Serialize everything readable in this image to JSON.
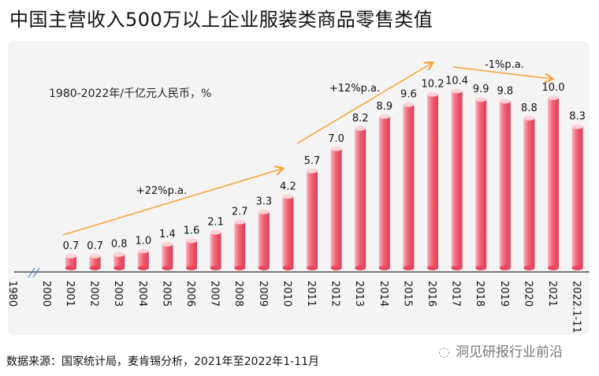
{
  "title": "中国主营收入500万以上企业服装类商品零售类值",
  "subtitle": "1980-2022年/千亿元人民币，%",
  "source": "数据来源：国家统计局，麦肯锡分析，2021年至2022年1-11月",
  "watermark": "洞见研报行业前沿",
  "colors": {
    "bar": "#e8475f",
    "bar_light": "#f8a3b0",
    "arrow": "#f5a43a",
    "axis": "#333333"
  },
  "chart_data": {
    "type": "bar",
    "title": "中国主营收入500万以上企业服装类商品零售类值",
    "ylabel": "千亿元人民币",
    "ylim": [
      0,
      11
    ],
    "grid": false,
    "categories": [
      "1980",
      "2000",
      "2001",
      "2002",
      "2003",
      "2004",
      "2005",
      "2006",
      "2007",
      "2008",
      "2009",
      "2010",
      "2011",
      "2012",
      "2013",
      "2014",
      "2015",
      "2016",
      "2017",
      "2018",
      "2019",
      "2020",
      "2021",
      "2022.1-11"
    ],
    "values": [
      null,
      null,
      0.7,
      0.7,
      0.8,
      1.0,
      1.4,
      1.6,
      2.1,
      2.7,
      3.3,
      4.2,
      5.7,
      7.0,
      8.2,
      8.9,
      9.6,
      10.2,
      10.4,
      9.9,
      9.8,
      8.8,
      10.0,
      8.3
    ],
    "value_labels": [
      "",
      "",
      "0.7",
      "0.7",
      "0.8",
      "1.0",
      "1.4",
      "1.6",
      "2.1",
      "2.7",
      "3.3",
      "4.2",
      "5.7",
      "7.0",
      "8.2",
      "8.9",
      "9.6",
      "10.2",
      "10.4",
      "9.9",
      "9.8",
      "8.8",
      "10.0",
      "8.3"
    ],
    "axis_break": "between 1980 and 2000",
    "annotations": [
      {
        "text": "+22%p.a.",
        "from": "2001",
        "to": "2010",
        "direction": "up"
      },
      {
        "text": "+12%p.a.",
        "from": "2011",
        "to": "2016",
        "direction": "up"
      },
      {
        "text": "-1%p.a.",
        "from": "2017",
        "to": "2021",
        "direction": "down"
      }
    ]
  }
}
